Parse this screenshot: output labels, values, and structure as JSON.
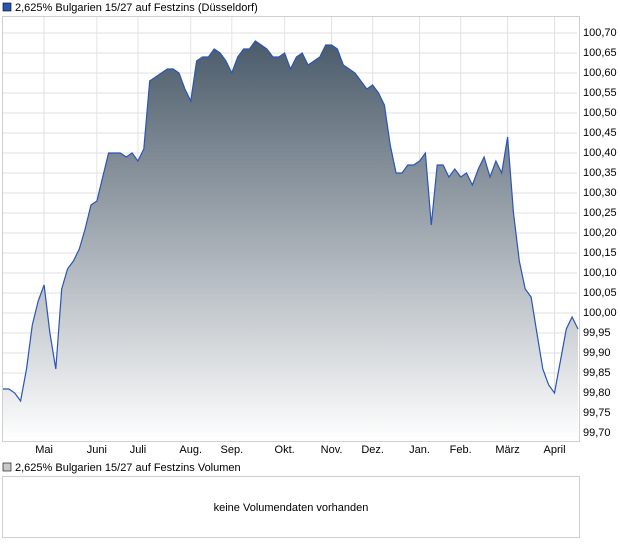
{
  "chart_data": {
    "type": "area",
    "title": "2,625% Bulgarien 15/27 auf Festzins (Düsseldorf)",
    "color": "#2a55b5",
    "fill_top": "#4b5b6a",
    "categories": [
      null,
      null,
      null,
      null,
      null,
      null,
      null,
      "Mai",
      null,
      null,
      null,
      null,
      null,
      null,
      null,
      null,
      "Juni",
      null,
      null,
      null,
      null,
      null,
      null,
      "Juli",
      null,
      null,
      null,
      null,
      null,
      null,
      null,
      null,
      "Aug.",
      null,
      null,
      null,
      null,
      null,
      null,
      "Sep.",
      null,
      null,
      null,
      null,
      null,
      null,
      null,
      null,
      "Okt.",
      null,
      null,
      null,
      null,
      null,
      null,
      null,
      "Nov.",
      null,
      null,
      null,
      null,
      null,
      null,
      "Dez.",
      null,
      null,
      null,
      null,
      null,
      null,
      null,
      "Jan.",
      null,
      null,
      null,
      null,
      null,
      null,
      "Feb.",
      null,
      null,
      null,
      null,
      null,
      null,
      null,
      "März",
      null,
      null,
      null,
      null,
      null,
      null,
      null,
      "April",
      null,
      null,
      null,
      null
    ],
    "values": [
      99.81,
      99.81,
      99.8,
      99.78,
      99.86,
      99.97,
      100.03,
      100.07,
      99.95,
      99.86,
      100.06,
      100.11,
      100.13,
      100.16,
      100.21,
      100.27,
      100.28,
      100.34,
      100.4,
      100.4,
      100.4,
      100.39,
      100.4,
      100.38,
      100.41,
      100.58,
      100.59,
      100.6,
      100.61,
      100.61,
      100.6,
      100.56,
      100.53,
      100.63,
      100.64,
      100.64,
      100.66,
      100.65,
      100.63,
      100.6,
      100.64,
      100.66,
      100.66,
      100.68,
      100.67,
      100.66,
      100.64,
      100.64,
      100.65,
      100.61,
      100.64,
      100.65,
      100.62,
      100.63,
      100.64,
      100.67,
      100.67,
      100.66,
      100.62,
      100.61,
      100.6,
      100.58,
      100.56,
      100.57,
      100.55,
      100.52,
      100.42,
      100.35,
      100.35,
      100.37,
      100.37,
      100.38,
      100.4,
      100.22,
      100.37,
      100.37,
      100.34,
      100.36,
      100.34,
      100.35,
      100.32,
      100.36,
      100.39,
      100.34,
      100.38,
      100.35,
      100.44,
      100.25,
      100.13,
      100.06,
      100.04,
      99.95,
      99.86,
      99.82,
      99.8,
      99.88,
      99.96,
      99.99,
      99.96
    ],
    "ylim": [
      99.68,
      100.74
    ],
    "yticks": [
      {
        "value": 99.7,
        "label": "99,70"
      },
      {
        "value": 99.75,
        "label": "99,75"
      },
      {
        "value": 99.8,
        "label": "99,80"
      },
      {
        "value": 99.85,
        "label": "99,85"
      },
      {
        "value": 99.9,
        "label": "99,90"
      },
      {
        "value": 99.95,
        "label": "99,95"
      },
      {
        "value": 100.0,
        "label": "100,00"
      },
      {
        "value": 100.05,
        "label": "100,05"
      },
      {
        "value": 100.1,
        "label": "100,10"
      },
      {
        "value": 100.15,
        "label": "100,15"
      },
      {
        "value": 100.2,
        "label": "100,20"
      },
      {
        "value": 100.25,
        "label": "100,25"
      },
      {
        "value": 100.3,
        "label": "100,30"
      },
      {
        "value": 100.35,
        "label": "100,35"
      },
      {
        "value": 100.4,
        "label": "100,40"
      },
      {
        "value": 100.45,
        "label": "100,45"
      },
      {
        "value": 100.5,
        "label": "100,50"
      },
      {
        "value": 100.55,
        "label": "100,55"
      },
      {
        "value": 100.6,
        "label": "100,60"
      },
      {
        "value": 100.65,
        "label": "100,65"
      },
      {
        "value": 100.7,
        "label": "100,70"
      }
    ],
    "grid": true
  },
  "volume_panel": {
    "legend": "2,625% Bulgarien 15/27 auf Festzins Volumen",
    "message": "keine Volumendaten vorhanden"
  }
}
